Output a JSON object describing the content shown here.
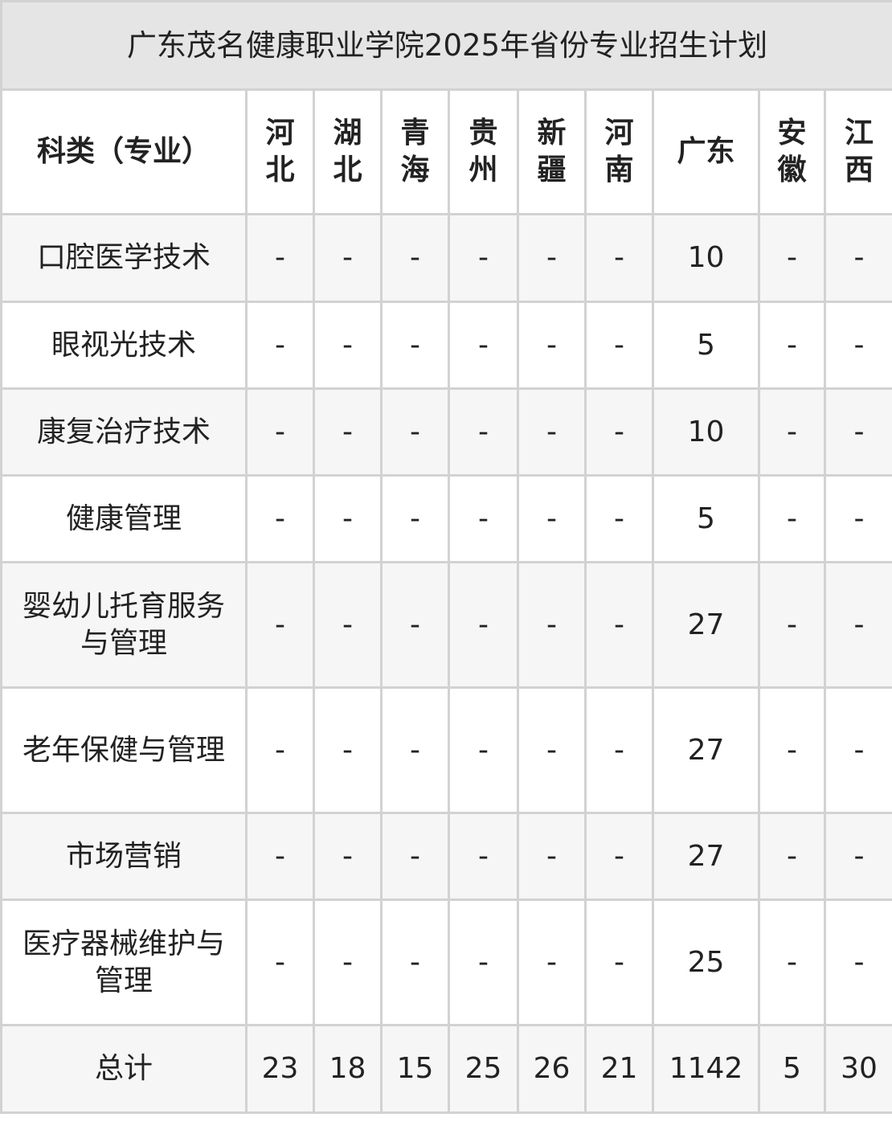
{
  "title": "广东茂名健康职业学院2025年省份专业招生计划",
  "header": {
    "category": "科类（专业）",
    "provinces": [
      "河北",
      "湖北",
      "青海",
      "贵州",
      "新疆",
      "河南",
      "广东",
      "安徽",
      "江西"
    ]
  },
  "rows": [
    {
      "major": "口腔医学技术",
      "values": [
        "-",
        "-",
        "-",
        "-",
        "-",
        "-",
        "10",
        "-",
        "-"
      ]
    },
    {
      "major": "眼视光技术",
      "values": [
        "-",
        "-",
        "-",
        "-",
        "-",
        "-",
        "5",
        "-",
        "-"
      ]
    },
    {
      "major": "康复治疗技术",
      "values": [
        "-",
        "-",
        "-",
        "-",
        "-",
        "-",
        "10",
        "-",
        "-"
      ]
    },
    {
      "major": "健康管理",
      "values": [
        "-",
        "-",
        "-",
        "-",
        "-",
        "-",
        "5",
        "-",
        "-"
      ]
    },
    {
      "major": "婴幼儿托育服务与管理",
      "values": [
        "-",
        "-",
        "-",
        "-",
        "-",
        "-",
        "27",
        "-",
        "-"
      ]
    },
    {
      "major": "老年保健与管理",
      "values": [
        "-",
        "-",
        "-",
        "-",
        "-",
        "-",
        "27",
        "-",
        "-"
      ]
    },
    {
      "major": "市场营销",
      "values": [
        "-",
        "-",
        "-",
        "-",
        "-",
        "-",
        "27",
        "-",
        "-"
      ]
    },
    {
      "major": "医疗器械维护与管理",
      "values": [
        "-",
        "-",
        "-",
        "-",
        "-",
        "-",
        "25",
        "-",
        "-"
      ]
    }
  ],
  "total": {
    "label": "总计",
    "values": [
      "23",
      "18",
      "15",
      "25",
      "26",
      "21",
      "1142",
      "5",
      "30"
    ]
  }
}
